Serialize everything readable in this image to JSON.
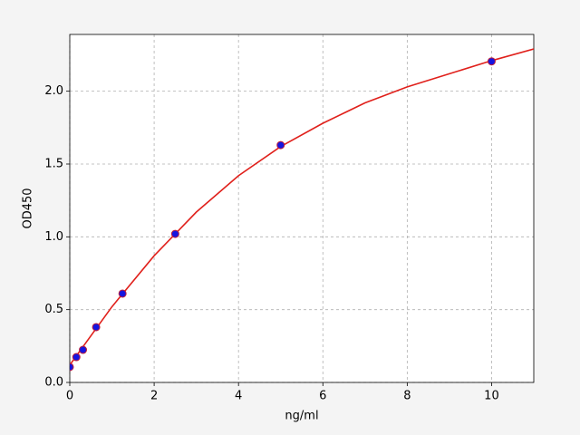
{
  "chart_data": {
    "type": "scatter",
    "xlabel": "ng/ml",
    "ylabel": "OD450",
    "xlim": [
      0,
      11
    ],
    "ylim": [
      0,
      2.39
    ],
    "xticks": [
      0,
      2,
      4,
      6,
      8,
      10
    ],
    "yticks": [
      {
        "value": 0,
        "label": "0.0"
      },
      0.5,
      {
        "value": 1,
        "label": "1.0"
      },
      1.5,
      {
        "value": 2,
        "label": "2.0"
      }
    ],
    "grid": true,
    "series": [
      {
        "mode": "line",
        "color": "#e0201b",
        "x": [
          0,
          1,
          2,
          3,
          4,
          5,
          6,
          7,
          8,
          9,
          10,
          11
        ],
        "values": [
          0.12,
          0.52,
          0.87,
          1.17,
          1.42,
          1.62,
          1.78,
          1.92,
          2.03,
          2.12,
          2.21,
          2.29
        ]
      },
      {
        "mode": "markers",
        "color": "#1515e0",
        "edgecolor": "#c0203a",
        "x": [
          0,
          0.156,
          0.3125,
          0.625,
          1.25,
          2.5,
          5,
          10
        ],
        "values": [
          0.106,
          0.174,
          0.224,
          0.38,
          0.61,
          1.02,
          1.63,
          2.205
        ]
      }
    ]
  }
}
